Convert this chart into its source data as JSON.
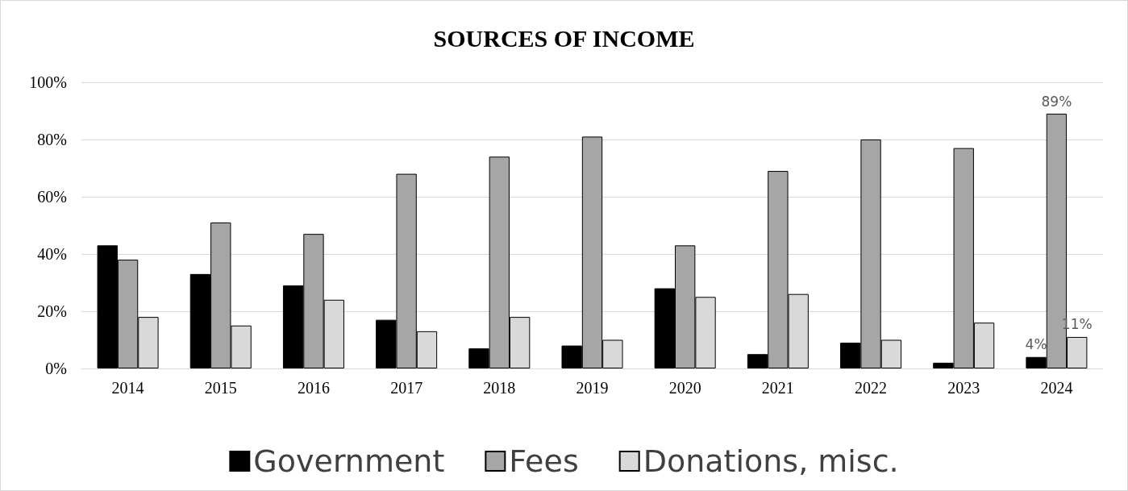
{
  "chart_data": {
    "type": "bar",
    "title": "SOURCES OF INCOME",
    "categories": [
      "2014",
      "2015",
      "2016",
      "2017",
      "2018",
      "2019",
      "2020",
      "2021",
      "2022",
      "2023",
      "2024"
    ],
    "series": [
      {
        "name": "Government",
        "color": "#000000",
        "values": [
          43,
          33,
          29,
          17,
          7,
          8,
          28,
          5,
          9,
          2,
          4
        ],
        "value_labels": [
          null,
          null,
          null,
          null,
          null,
          null,
          null,
          null,
          null,
          null,
          "4%"
        ]
      },
      {
        "name": "Fees",
        "color": "#a6a6a6",
        "values": [
          38,
          51,
          47,
          68,
          74,
          81,
          43,
          69,
          80,
          77,
          89
        ],
        "value_labels": [
          null,
          null,
          null,
          null,
          null,
          null,
          null,
          null,
          null,
          null,
          "89%"
        ]
      },
      {
        "name": "Donations, misc.",
        "color": "#d9d9d9",
        "values": [
          18,
          15,
          24,
          13,
          18,
          10,
          25,
          26,
          10,
          16,
          11
        ],
        "value_labels": [
          null,
          null,
          null,
          null,
          null,
          null,
          null,
          null,
          null,
          null,
          "11%"
        ]
      }
    ],
    "ylim": [
      0,
      100
    ],
    "yticks": [
      {
        "value": 0,
        "label": "0%"
      },
      {
        "value": 20,
        "label": "20%"
      },
      {
        "value": 40,
        "label": "40%"
      },
      {
        "value": 60,
        "label": "60%"
      },
      {
        "value": 80,
        "label": "80%"
      },
      {
        "value": 100,
        "label": "100%"
      }
    ],
    "grid": "y",
    "legend": "bottom"
  }
}
